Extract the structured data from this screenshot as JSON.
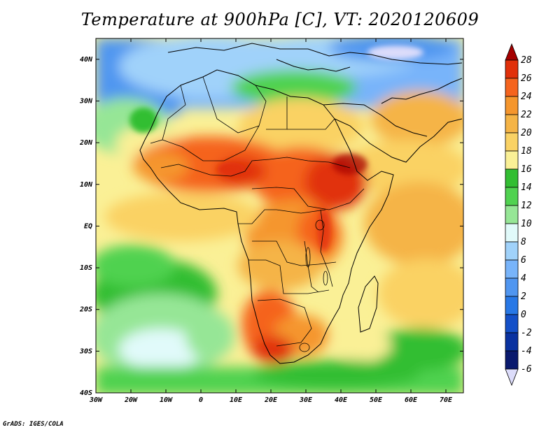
{
  "title": "Temperature at 900hPa [C], VT: 2020120609",
  "footer": "GrADS: IGES/COLA",
  "map": {
    "lon_range": [
      -30,
      75
    ],
    "lat_range": [
      -40,
      45
    ],
    "lat_ticks": [
      "40N",
      "30N",
      "20N",
      "10N",
      "EQ",
      "10S",
      "20S",
      "30S",
      "40S"
    ],
    "lon_ticks": [
      "30W",
      "20W",
      "10W",
      "0",
      "10E",
      "20E",
      "30E",
      "40E",
      "50E",
      "60E",
      "70E"
    ]
  },
  "colorbar": {
    "labels": [
      "28",
      "26",
      "24",
      "22",
      "20",
      "18",
      "16",
      "14",
      "12",
      "10",
      "8",
      "6",
      "4",
      "2",
      "0",
      "-2",
      "-4",
      "-6"
    ],
    "colors": [
      "#a50000",
      "#e1300a",
      "#f5641e",
      "#f5962d",
      "#f5b446",
      "#fad264",
      "#faf096",
      "#32be32",
      "#50d250",
      "#96e696",
      "#e1fafa",
      "#a0d2fa",
      "#78b4fa",
      "#5096f0",
      "#2878e6",
      "#1450c8",
      "#0a32a0",
      "#0a1a6e",
      "#dcdcfa"
    ]
  },
  "icons": {
    "colorbar_top": "triangle-up",
    "colorbar_bottom": "triangle-down"
  }
}
